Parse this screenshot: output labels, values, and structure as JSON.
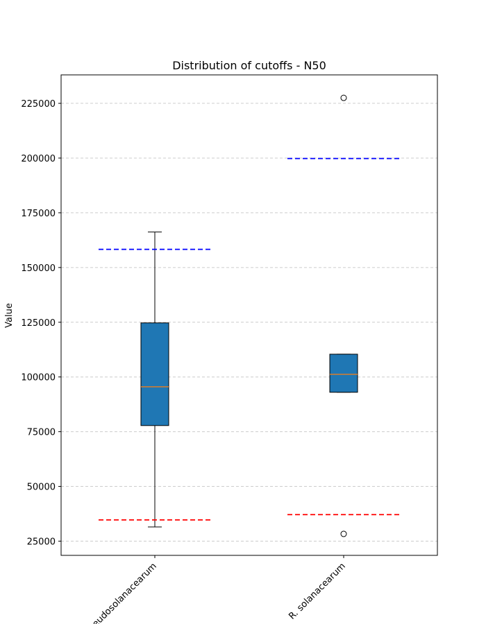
{
  "chart_data": {
    "type": "box",
    "title": "Distribution of cutoffs - N50",
    "xlabel": "",
    "ylabel": "Value",
    "ylim": [
      18500,
      238000
    ],
    "yticks": [
      25000,
      50000,
      75000,
      100000,
      125000,
      150000,
      175000,
      200000,
      225000
    ],
    "grid": "y-dashed",
    "categories": [
      "R. pseudosolanacearum",
      "R. solanacearum"
    ],
    "boxes": [
      {
        "category": "R. pseudosolanacearum",
        "whisker_low": 31500,
        "q1": 77800,
        "median": 95500,
        "q3": 124700,
        "whisker_high": 166200,
        "outliers": [],
        "upper_cutoff": 158300,
        "lower_cutoff": 34700
      },
      {
        "category": "R. solanacearum",
        "whisker_low": 93000,
        "q1": 93000,
        "median": 101200,
        "q3": 110400,
        "whisker_high": 110400,
        "outliers": [
          227500,
          28300
        ],
        "upper_cutoff": 199800,
        "lower_cutoff": 37100
      }
    ],
    "colors": {
      "box_fill": "#1f77b4",
      "median": "#ff7f0e",
      "upper_cutoff": "#0000ff",
      "lower_cutoff": "#ff0000",
      "grid": "#cccccc"
    }
  }
}
